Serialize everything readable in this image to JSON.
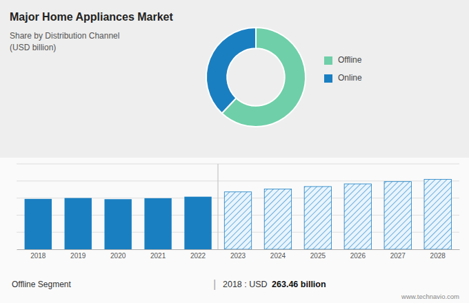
{
  "chart_data": [
    {
      "type": "donut",
      "title": "Major Home Appliances Market",
      "subtitle": [
        "Share by Distribution Channel",
        "(USD billion)"
      ],
      "categories": [
        "Offline",
        "Online"
      ],
      "values": [
        62,
        38
      ],
      "colors": [
        "#6ecfa8",
        "#1a7fc1"
      ],
      "legend": "right"
    },
    {
      "type": "bar",
      "categories": [
        "2018",
        "2019",
        "2020",
        "2021",
        "2022",
        "2023",
        "2024",
        "2025",
        "2026",
        "2027",
        "2028"
      ],
      "values": [
        263.46,
        268,
        262,
        267,
        275,
        300,
        315,
        328,
        342,
        354,
        366
      ],
      "color": "#1a7fc1",
      "colors": [
        "#1a7fc1",
        "#1a7fc1",
        "#1a7fc1",
        "#1a7fc1",
        "#1a7fc1",
        "#e8f4ff",
        "#e8f4ff",
        "#e8f4ff",
        "#e8f4ff",
        "#e8f4ff",
        "#e8f4ff"
      ],
      "ylim": [
        0,
        446.52
      ],
      "yticks": [
        89.304,
        178.608,
        267.912,
        357.216,
        446.52
      ],
      "grid": true,
      "tick_labels": "x",
      "annotations": [
        "Offline Segment",
        "|",
        "2018 : USD ",
        "263.46 billion",
        "www.technavio.com"
      ]
    }
  ]
}
